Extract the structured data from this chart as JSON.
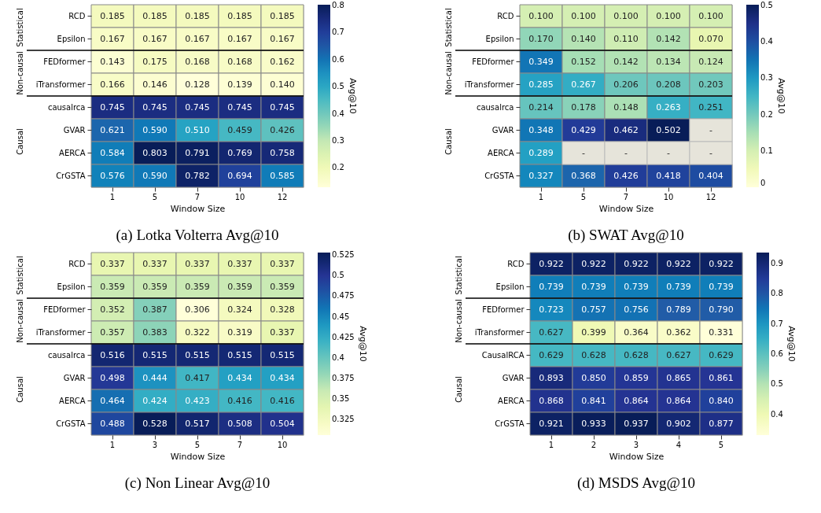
{
  "chart_data": [
    {
      "type": "heatmap",
      "title": "(a) Lotka Volterra Avg@10",
      "xlabel": "Window Size",
      "clabel": "Avg@10",
      "categories": [
        "1",
        "5",
        "7",
        "10",
        "12"
      ],
      "y_categories": [
        "RCD",
        "Epsilon",
        "FEDformer",
        "iTransformer",
        "causalrca",
        "GVAR",
        "AERCA",
        "CrGSTA"
      ],
      "cells": [
        [
          0.185,
          0.185,
          0.185,
          0.185,
          0.185
        ],
        [
          0.167,
          0.167,
          0.167,
          0.167,
          0.167
        ],
        [
          0.143,
          0.175,
          0.168,
          0.168,
          0.162
        ],
        [
          0.166,
          0.146,
          0.128,
          0.139,
          0.14
        ],
        [
          0.745,
          0.745,
          0.745,
          0.745,
          0.745
        ],
        [
          0.621,
          0.59,
          0.51,
          0.459,
          0.426
        ],
        [
          0.584,
          0.803,
          0.791,
          0.769,
          0.758
        ],
        [
          0.576,
          0.59,
          0.782,
          0.694,
          0.585
        ]
      ],
      "cell_labels": [
        [
          "0.185",
          "0.185",
          "0.185",
          "0.185",
          "0.185"
        ],
        [
          "0.167",
          "0.167",
          "0.167",
          "0.167",
          "0.167"
        ],
        [
          "0.143",
          "0.175",
          "0.168",
          "0.168",
          "0.162"
        ],
        [
          "0.166",
          "0.146",
          "0.128",
          "0.139",
          "0.140"
        ],
        [
          "0.745",
          "0.745",
          "0.745",
          "0.745",
          "0.745"
        ],
        [
          "0.621",
          "0.590",
          "0.510",
          "0.459",
          "0.426"
        ],
        [
          "0.584",
          "0.803",
          "0.791",
          "0.769",
          "0.758"
        ],
        [
          "0.576",
          "0.590",
          "0.782",
          "0.694",
          "0.585"
        ]
      ],
      "clim": [
        0.128,
        0.803
      ],
      "cticks": [
        0.2,
        0.3,
        0.4,
        0.5,
        0.6,
        0.7,
        0.8
      ],
      "annotations": [
        "Statistical",
        "Non-causal",
        "Causal"
      ]
    },
    {
      "type": "heatmap",
      "title": "(b) SWAT Avg@10",
      "xlabel": "Window Size",
      "clabel": "Avg@10",
      "categories": [
        "1",
        "5",
        "7",
        "10",
        "12"
      ],
      "y_categories": [
        "RCD",
        "Epsilon",
        "FEDformer",
        "iTransformer",
        "causalrca",
        "GVAR",
        "AERCA",
        "CrGSTA"
      ],
      "cells": [
        [
          0.1,
          0.1,
          0.1,
          0.1,
          0.1
        ],
        [
          0.17,
          0.14,
          0.11,
          0.142,
          0.07
        ],
        [
          0.349,
          0.152,
          0.142,
          0.134,
          0.124
        ],
        [
          0.285,
          0.267,
          0.206,
          0.208,
          0.203
        ],
        [
          0.214,
          0.178,
          0.148,
          0.263,
          0.251
        ],
        [
          0.348,
          0.429,
          0.462,
          0.502,
          null
        ],
        [
          0.289,
          null,
          null,
          null,
          null
        ],
        [
          0.327,
          0.368,
          0.426,
          0.418,
          0.404
        ]
      ],
      "cell_labels": [
        [
          "0.100",
          "0.100",
          "0.100",
          "0.100",
          "0.100"
        ],
        [
          "0.170",
          "0.140",
          "0.110",
          "0.142",
          "0.070"
        ],
        [
          "0.349",
          "0.152",
          "0.142",
          "0.134",
          "0.124"
        ],
        [
          "0.285",
          "0.267",
          "0.206",
          "0.208",
          "0.203"
        ],
        [
          "0.214",
          "0.178",
          "0.148",
          "0.263",
          "0.251"
        ],
        [
          "0.348",
          "0.429",
          "0.462",
          "0.502",
          "-"
        ],
        [
          "0.289",
          "-",
          "-",
          "-",
          "-"
        ],
        [
          "0.327",
          "0.368",
          "0.426",
          "0.418",
          "0.404"
        ]
      ],
      "clim": [
        0.0,
        0.502
      ],
      "cticks": [
        0.0,
        0.1,
        0.2,
        0.3,
        0.4,
        0.5
      ],
      "annotations": [
        "Statistical",
        "Non-causal",
        "Causal"
      ]
    },
    {
      "type": "heatmap",
      "title": "(c) Non Linear Avg@10",
      "xlabel": "Window Size",
      "clabel": "Avg@10",
      "categories": [
        "1",
        "3",
        "5",
        "7",
        "10"
      ],
      "y_categories": [
        "RCD",
        "Epsilon",
        "FEDformer",
        "iTransformer",
        "causalrca",
        "GVAR",
        "AERCA",
        "CrGSTA"
      ],
      "cells": [
        [
          0.337,
          0.337,
          0.337,
          0.337,
          0.337
        ],
        [
          0.359,
          0.359,
          0.359,
          0.359,
          0.359
        ],
        [
          0.352,
          0.387,
          0.306,
          0.324,
          0.328
        ],
        [
          0.357,
          0.383,
          0.322,
          0.319,
          0.337
        ],
        [
          0.516,
          0.515,
          0.515,
          0.515,
          0.515
        ],
        [
          0.498,
          0.444,
          0.417,
          0.434,
          0.434
        ],
        [
          0.464,
          0.424,
          0.423,
          0.416,
          0.416
        ],
        [
          0.488,
          0.528,
          0.517,
          0.508,
          0.504
        ]
      ],
      "cell_labels": [
        [
          "0.337",
          "0.337",
          "0.337",
          "0.337",
          "0.337"
        ],
        [
          "0.359",
          "0.359",
          "0.359",
          "0.359",
          "0.359"
        ],
        [
          "0.352",
          "0.387",
          "0.306",
          "0.324",
          "0.328"
        ],
        [
          "0.357",
          "0.383",
          "0.322",
          "0.319",
          "0.337"
        ],
        [
          "0.516",
          "0.515",
          "0.515",
          "0.515",
          "0.515"
        ],
        [
          "0.498",
          "0.444",
          "0.417",
          "0.434",
          "0.434"
        ],
        [
          "0.464",
          "0.424",
          "0.423",
          "0.416",
          "0.416"
        ],
        [
          "0.488",
          "0.528",
          "0.517",
          "0.508",
          "0.504"
        ]
      ],
      "clim": [
        0.306,
        0.528
      ],
      "cticks": [
        0.325,
        0.35,
        0.375,
        0.4,
        0.425,
        0.45,
        0.475,
        0.5,
        0.525
      ],
      "annotations": [
        "Statistical",
        "Non-causal",
        "Causal"
      ]
    },
    {
      "type": "heatmap",
      "title": "(d) MSDS Avg@10",
      "xlabel": "Window Size",
      "clabel": "Avg@10",
      "categories": [
        "1",
        "2",
        "3",
        "4",
        "5"
      ],
      "y_categories": [
        "RCD",
        "Epsilon",
        "FEDformer",
        "iTransformer",
        "CausalRCA",
        "GVAR",
        "AERCA",
        "CrGSTA"
      ],
      "cells": [
        [
          0.922,
          0.922,
          0.922,
          0.922,
          0.922
        ],
        [
          0.739,
          0.739,
          0.739,
          0.739,
          0.739
        ],
        [
          0.723,
          0.757,
          0.756,
          0.789,
          0.79
        ],
        [
          0.627,
          0.399,
          0.364,
          0.362,
          0.331
        ],
        [
          0.629,
          0.628,
          0.628,
          0.627,
          0.629
        ],
        [
          0.893,
          0.85,
          0.859,
          0.865,
          0.861
        ],
        [
          0.868,
          0.841,
          0.864,
          0.864,
          0.84
        ],
        [
          0.921,
          0.933,
          0.937,
          0.902,
          0.877
        ]
      ],
      "cell_labels": [
        [
          "0.922",
          "0.922",
          "0.922",
          "0.922",
          "0.922"
        ],
        [
          "0.739",
          "0.739",
          "0.739",
          "0.739",
          "0.739"
        ],
        [
          "0.723",
          "0.757",
          "0.756",
          "0.789",
          "0.790"
        ],
        [
          "0.627",
          "0.399",
          "0.364",
          "0.362",
          "0.331"
        ],
        [
          "0.629",
          "0.628",
          "0.628",
          "0.627",
          "0.629"
        ],
        [
          "0.893",
          "0.850",
          "0.859",
          "0.865",
          "0.861"
        ],
        [
          "0.868",
          "0.841",
          "0.864",
          "0.864",
          "0.840"
        ],
        [
          "0.921",
          "0.933",
          "0.937",
          "0.902",
          "0.877"
        ]
      ],
      "clim": [
        0.331,
        0.937
      ],
      "cticks": [
        0.4,
        0.5,
        0.6,
        0.7,
        0.8,
        0.9
      ],
      "annotations": [
        "Statistical",
        "Non-causal",
        "Causal"
      ]
    }
  ]
}
